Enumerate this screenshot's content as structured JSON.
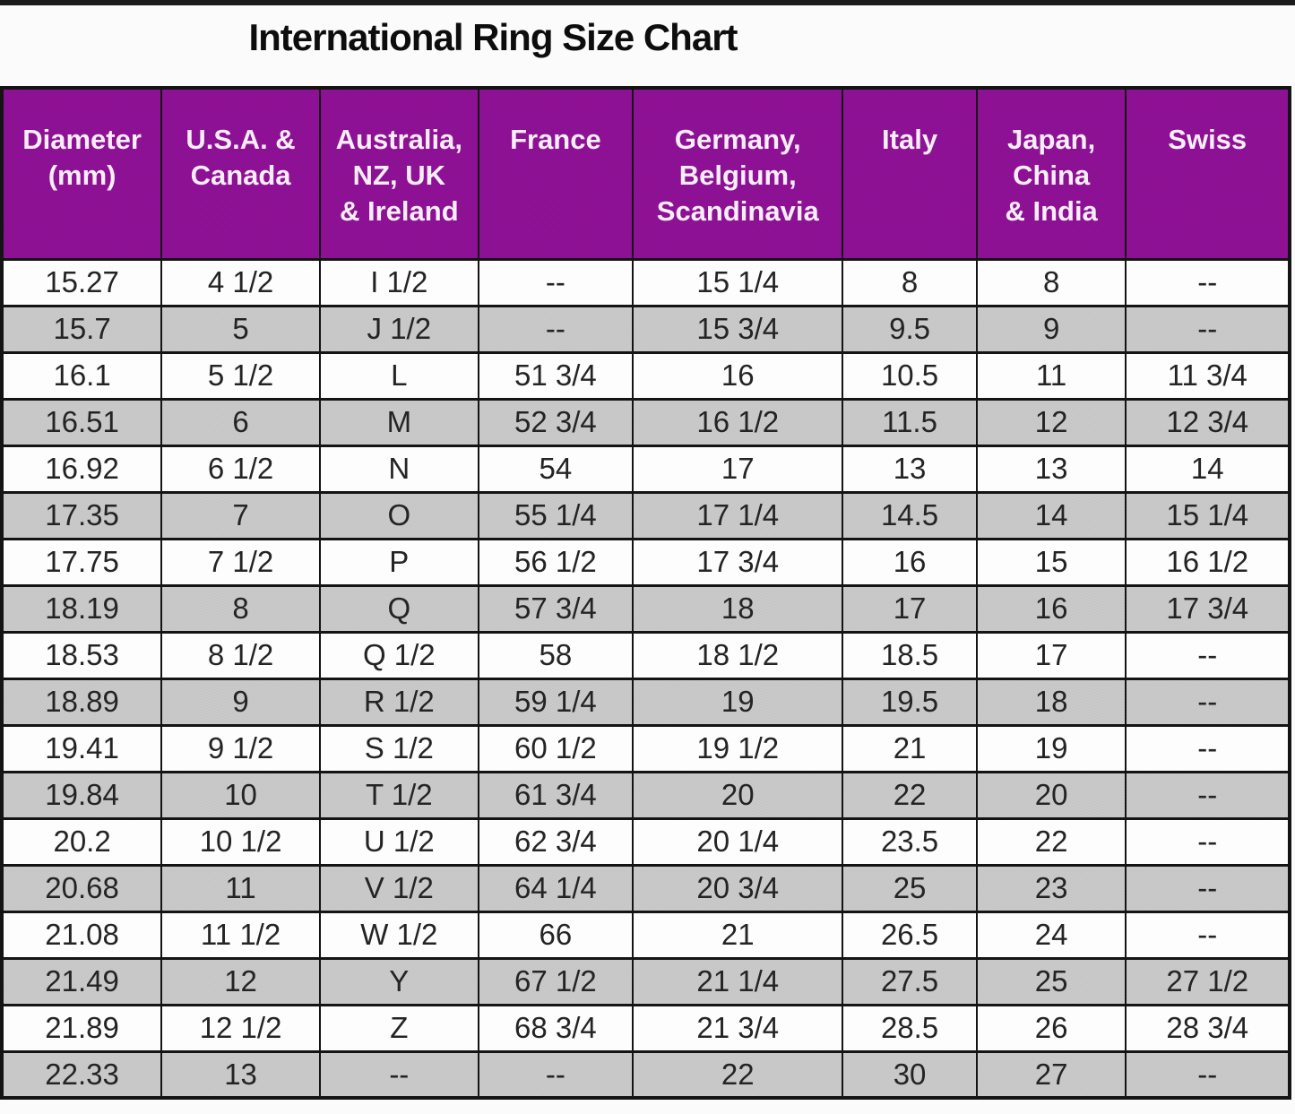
{
  "chart_data": {
    "type": "table",
    "title": "International Ring Size Chart",
    "columns": [
      {
        "id": "diameter-mm",
        "label": "Diameter (mm)",
        "lines": [
          "Diameter",
          "(mm)"
        ]
      },
      {
        "id": "usa-canada",
        "label": "U.S.A. & Canada",
        "lines": [
          "U.S.A. &",
          "Canada"
        ]
      },
      {
        "id": "australia-nz-uk-ireland",
        "label": "Australia, NZ, UK & Ireland",
        "lines": [
          "Australia,",
          "NZ, UK",
          "& Ireland"
        ]
      },
      {
        "id": "france",
        "label": "France",
        "lines": [
          "France"
        ]
      },
      {
        "id": "germany-belgium-scandinavia",
        "label": "Germany, Belgium, Scandinavia",
        "lines": [
          "Germany,",
          "Belgium,",
          "Scandinavia"
        ]
      },
      {
        "id": "italy",
        "label": "Italy",
        "lines": [
          "Italy"
        ]
      },
      {
        "id": "japan-china-india",
        "label": "Japan, China & India",
        "lines": [
          "Japan,",
          "China",
          "& India"
        ]
      },
      {
        "id": "swiss",
        "label": "Swiss",
        "lines": [
          "Swiss"
        ]
      }
    ],
    "rows": [
      [
        "15.27",
        "4 1/2",
        "I 1/2",
        "--",
        "15 1/4",
        "8",
        "8",
        "--"
      ],
      [
        "15.7",
        "5",
        "J 1/2",
        "--",
        "15 3/4",
        "9.5",
        "9",
        "--"
      ],
      [
        "16.1",
        "5 1/2",
        "L",
        "51 3/4",
        "16",
        "10.5",
        "11",
        "11 3/4"
      ],
      [
        "16.51",
        "6",
        "M",
        "52 3/4",
        "16 1/2",
        "11.5",
        "12",
        "12 3/4"
      ],
      [
        "16.92",
        "6 1/2",
        "N",
        "54",
        "17",
        "13",
        "13",
        "14"
      ],
      [
        "17.35",
        "7",
        "O",
        "55 1/4",
        "17 1/4",
        "14.5",
        "14",
        "15 1/4"
      ],
      [
        "17.75",
        "7 1/2",
        "P",
        "56 1/2",
        "17 3/4",
        "16",
        "15",
        "16 1/2"
      ],
      [
        "18.19",
        "8",
        "Q",
        "57 3/4",
        "18",
        "17",
        "16",
        "17 3/4"
      ],
      [
        "18.53",
        "8 1/2",
        "Q 1/2",
        "58",
        "18 1/2",
        "18.5",
        "17",
        "--"
      ],
      [
        "18.89",
        "9",
        "R 1/2",
        "59 1/4",
        "19",
        "19.5",
        "18",
        "--"
      ],
      [
        "19.41",
        "9 1/2",
        "S 1/2",
        "60 1/2",
        "19 1/2",
        "21",
        "19",
        "--"
      ],
      [
        "19.84",
        "10",
        "T 1/2",
        "61 3/4",
        "20",
        "22",
        "20",
        "--"
      ],
      [
        "20.2",
        "10 1/2",
        "U 1/2",
        "62 3/4",
        "20 1/4",
        "23.5",
        "22",
        "--"
      ],
      [
        "20.68",
        "11",
        "V 1/2",
        "64 1/4",
        "20 3/4",
        "25",
        "23",
        "--"
      ],
      [
        "21.08",
        "11 1/2",
        "W 1/2",
        "66",
        "21",
        "26.5",
        "24",
        "--"
      ],
      [
        "21.49",
        "12",
        "Y",
        "67 1/2",
        "21 1/4",
        "27.5",
        "25",
        "27 1/2"
      ],
      [
        "21.89",
        "12 1/2",
        "Z",
        "68 3/4",
        "21 3/4",
        "28.5",
        "26",
        "28 3/4"
      ],
      [
        "22.33",
        "13",
        "--",
        "--",
        "22",
        "30",
        "27",
        "--"
      ]
    ],
    "empty_marker": "--",
    "row_striping": "alternating white and gray, first data row white",
    "legend_position": "none",
    "grid": "on"
  },
  "colors": {
    "header_bg": "#8e1196",
    "header_text": "#f8eef8",
    "row_bg": "#fdfdfd",
    "row_alt_bg": "#c8c8c8",
    "border": "#141414",
    "title_text": "#0d0d0d",
    "cell_text": "#242424",
    "top_bar": "#1b1b1b"
  }
}
